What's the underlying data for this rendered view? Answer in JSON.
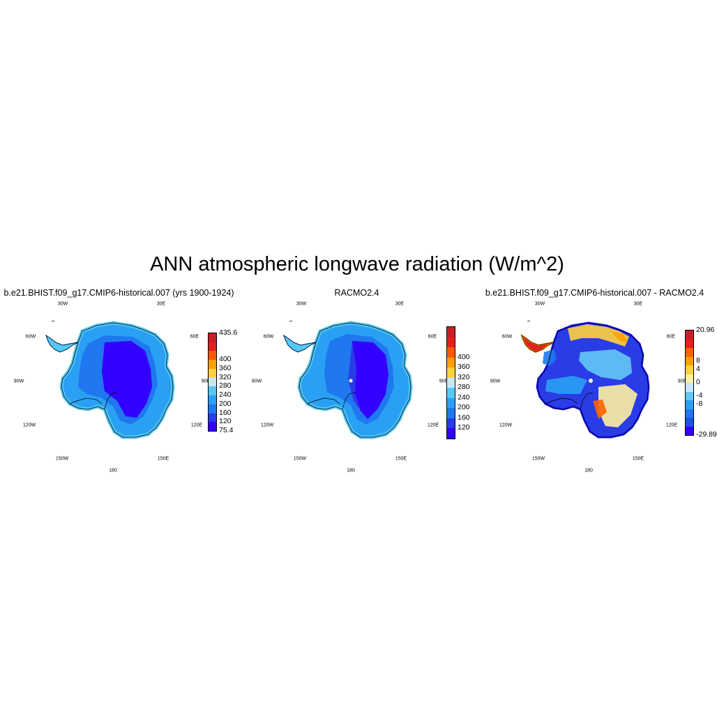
{
  "title": "ANN atmospheric longwave radiation (W/m^2)",
  "panels": [
    {
      "title": "b.e21.BHIST.f09_g17.CMIP6-historical.007 (yrs 1900-1924)",
      "longitude_labels": [
        "30W",
        "30E",
        "60W",
        "60E",
        "90W",
        "90E",
        "120W",
        "120E",
        "150W",
        "150E",
        "180"
      ],
      "colorbar": {
        "colors": [
          "#3300ff",
          "#2a3ce6",
          "#1f78f0",
          "#2aa0f5",
          "#55c8f5",
          "#c8e6ff",
          "#ffd23c",
          "#ffa000",
          "#ff5a00",
          "#e61e1e",
          "#c81e28"
        ],
        "labels": [
          "75.4",
          "120",
          "160",
          "200",
          "240",
          "280",
          "320",
          "360",
          "400",
          "435.6"
        ]
      }
    },
    {
      "title": "RACMO2.4",
      "longitude_labels": [
        "30W",
        "30E",
        "60W",
        "60E",
        "90W",
        "90E",
        "120W",
        "120E",
        "150W",
        "150E",
        "180"
      ],
      "colorbar": {
        "colors": [
          "#3300ff",
          "#2a3ce6",
          "#1f78f0",
          "#2aa0f5",
          "#55c8f5",
          "#c8e6ff",
          "#ffd23c",
          "#ffa000",
          "#ff5a00",
          "#e61e1e",
          "#c81e28"
        ],
        "labels": [
          "120",
          "160",
          "200",
          "240",
          "280",
          "320",
          "360",
          "400"
        ]
      }
    },
    {
      "title": "b.e21.BHIST.f09_g17.CMIP6-historical.007 - RACMO2.4",
      "longitude_labels": [
        "30W",
        "30E",
        "60W",
        "60E",
        "90W",
        "90E",
        "120W",
        "120E",
        "150W",
        "150E",
        "180"
      ],
      "colorbar": {
        "colors": [
          "#3300ff",
          "#1f50e6",
          "#1f78f0",
          "#2aa0f5",
          "#64c8f5",
          "#c8e6ff",
          "#fff0a0",
          "#ffd23c",
          "#ffa000",
          "#ff6400",
          "#e61e1e",
          "#c81e28"
        ],
        "labels": [
          "-29.89",
          "-8",
          "-4",
          "0",
          "4",
          "8",
          "20.96"
        ]
      }
    }
  ]
}
